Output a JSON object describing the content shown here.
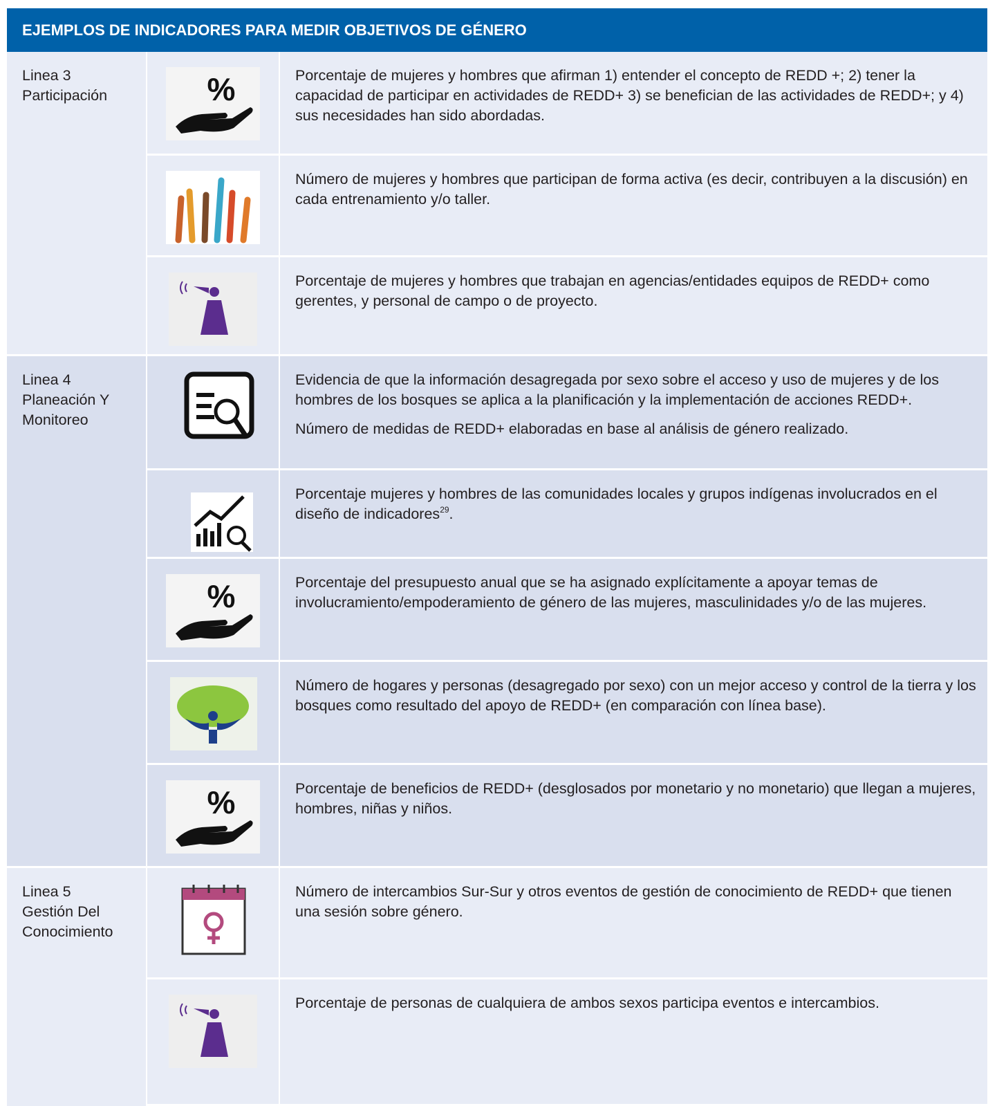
{
  "header": {
    "title": "EJEMPLOS DE INDICADORES PARA MEDIR OBJETIVOS DE GÉNERO"
  },
  "groups": [
    {
      "label": [
        "Linea 3",
        "Participación"
      ],
      "rows": [
        {
          "paragraphs": [
            "Porcentaje de mujeres y hombres que afirman 1) entender el concepto de REDD +; 2) tener la capacidad de participar en actividades de REDD+ 3) se benefician de las actividades de REDD+; y 4) sus necesidades han sido abordadas."
          ]
        },
        {
          "paragraphs": [
            "Número de mujeres y hombres que participan de forma activa (es decir, contribuyen a la discusión) en cada entrenamiento y/o taller."
          ]
        },
        {
          "paragraphs": [
            "Porcentaje de mujeres y hombres que trabajan en agencias/entidades equipos de REDD+ como gerentes, y personal de campo o de proyecto."
          ]
        }
      ]
    },
    {
      "label": [
        "Linea 4",
        "Planeación  Y",
        "Monitoreo"
      ],
      "rows": [
        {
          "paragraphs": [
            "Evidencia de que la información desagregada por sexo sobre el acceso y uso de mujeres y de los hombres de los bosques se aplica a la planificación y la implementación de acciones REDD+.",
            "Número de medidas de REDD+ elaboradas en base al análisis de género realizado."
          ]
        },
        {
          "paragraphs": [
            {
              "text": "Porcentaje mujeres y hombres de las comunidades locales y grupos indígenas involucrados en el diseño de indicadores",
              "note": "29",
              "end": "."
            }
          ]
        },
        {
          "paragraphs": [
            "Porcentaje del presupuesto anual que se ha asignado explícitamente a apoyar temas de involucramiento/empoderamiento de género de las mujeres, masculinidades y/o de las mujeres."
          ]
        },
        {
          "paragraphs": [
            "Número de hogares y personas (desagregado por sexo) con un mejor acceso y control de la tierra y los bosques como resultado del apoyo de REDD+ (en comparación con línea base)."
          ]
        },
        {
          "paragraphs": [
            "Porcentaje de beneficios de REDD+ (desglosados por monetario y no monetario) que llegan a mujeres, hombres, niñas y niños."
          ]
        }
      ]
    },
    {
      "label": [
        "Linea 5",
        "Gestión Del",
        "Conocimiento"
      ],
      "rows": [
        {
          "paragraphs": [
            "Número de intercambios Sur-Sur y otros eventos de gestión de conocimiento de REDD+ que tienen una sesión sobre género."
          ]
        },
        {
          "paragraphs": [
            "Porcentaje de personas de cualquiera de ambos sexos participa eventos e intercambios."
          ]
        }
      ]
    }
  ]
}
